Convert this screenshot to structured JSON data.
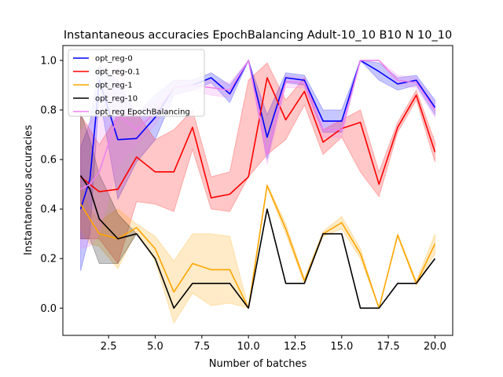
{
  "chart_data": {
    "type": "line",
    "title": "Instantaneous accuracies EpochBalancing Adult-10_10 B10 N 10_10",
    "xlabel": "Number of batches",
    "ylabel": "Instantaneous accuracies",
    "xlim": [
      0.05,
      20.95
    ],
    "ylim": [
      -0.11,
      1.06
    ],
    "xticks": [
      2.5,
      5.0,
      7.5,
      10.0,
      12.5,
      15.0,
      17.5,
      20.0
    ],
    "xtick_labels": [
      "2.5",
      "5.0",
      "7.5",
      "10.0",
      "12.5",
      "15.0",
      "17.5",
      "20.0"
    ],
    "yticks": [
      0.0,
      0.2,
      0.4,
      0.6,
      0.8,
      1.0
    ],
    "ytick_labels": [
      "0.0",
      "0.2",
      "0.4",
      "0.6",
      "0.8",
      "1.0"
    ],
    "legend_position": "top-left",
    "x": [
      1,
      1.5,
      2,
      3,
      4,
      5,
      6,
      7,
      8,
      9,
      10,
      11,
      12,
      13,
      14,
      15,
      16,
      17,
      18,
      19,
      20
    ],
    "series": [
      {
        "name": "opt_reg-0",
        "color": "#0000ff",
        "values": [
          0.4,
          0.52,
          0.92,
          0.68,
          0.685,
          0.77,
          0.89,
          0.9,
          0.93,
          0.865,
          1.0,
          0.69,
          0.93,
          0.92,
          0.755,
          0.755,
          1.0,
          0.955,
          0.905,
          0.92,
          0.81
        ],
        "upper": [
          0.65,
          0.75,
          0.98,
          0.92,
          0.78,
          0.86,
          0.92,
          0.92,
          0.95,
          0.9,
          1.0,
          0.78,
          0.95,
          0.94,
          0.8,
          0.8,
          1.0,
          0.99,
          0.93,
          0.94,
          0.84
        ],
        "lower": [
          0.15,
          0.3,
          0.86,
          0.44,
          0.59,
          0.68,
          0.86,
          0.88,
          0.91,
          0.83,
          1.0,
          0.6,
          0.91,
          0.9,
          0.71,
          0.71,
          1.0,
          0.92,
          0.88,
          0.9,
          0.78
        ]
      },
      {
        "name": "opt_reg-0.1",
        "color": "#ff0000",
        "values": [
          0.53,
          0.5,
          0.47,
          0.48,
          0.61,
          0.55,
          0.55,
          0.73,
          0.445,
          0.46,
          0.53,
          0.93,
          0.76,
          0.875,
          0.67,
          0.725,
          0.75,
          0.5,
          0.73,
          0.86,
          0.63
        ],
        "upper": [
          0.78,
          0.72,
          0.66,
          0.78,
          0.79,
          0.68,
          0.72,
          0.8,
          0.53,
          0.55,
          0.92,
          0.99,
          0.84,
          0.93,
          0.72,
          0.76,
          0.8,
          0.55,
          0.75,
          0.88,
          0.67
        ],
        "lower": [
          0.28,
          0.28,
          0.28,
          0.18,
          0.43,
          0.42,
          0.39,
          0.64,
          0.4,
          0.39,
          0.53,
          0.62,
          0.68,
          0.82,
          0.62,
          0.69,
          0.55,
          0.45,
          0.71,
          0.84,
          0.59
        ]
      },
      {
        "name": "opt_reg-1",
        "color": "#ffa500",
        "values": [
          0.42,
          0.36,
          0.3,
          0.28,
          0.325,
          0.24,
          0.065,
          0.18,
          0.155,
          0.155,
          0.0,
          0.495,
          0.32,
          0.11,
          0.3,
          0.345,
          0.22,
          0.0,
          0.295,
          0.1,
          0.26
        ],
        "upper": [
          0.5,
          0.4,
          0.35,
          0.4,
          0.34,
          0.29,
          0.19,
          0.3,
          0.3,
          0.29,
          0.0,
          0.5,
          0.34,
          0.12,
          0.31,
          0.37,
          0.24,
          0.0,
          0.3,
          0.11,
          0.3
        ],
        "lower": [
          0.32,
          0.26,
          0.25,
          0.16,
          0.31,
          0.19,
          -0.06,
          0.06,
          0.01,
          0.02,
          0.0,
          0.49,
          0.3,
          0.1,
          0.29,
          0.32,
          0.2,
          0.0,
          0.29,
          0.09,
          0.22
        ]
      },
      {
        "name": "opt_reg-10",
        "color": "#000000",
        "values": [
          0.535,
          0.48,
          0.36,
          0.28,
          0.3,
          0.2,
          0.0,
          0.1,
          0.1,
          0.1,
          0.0,
          0.4,
          0.1,
          0.1,
          0.3,
          0.3,
          0.0,
          0.0,
          0.1,
          0.1,
          0.2
        ],
        "upper": [
          0.79,
          0.68,
          0.54,
          0.38,
          0.3,
          0.2,
          0.0,
          0.1,
          0.1,
          0.1,
          0.0,
          0.4,
          0.1,
          0.1,
          0.3,
          0.3,
          0.0,
          0.0,
          0.1,
          0.1,
          0.2
        ],
        "lower": [
          0.28,
          0.28,
          0.18,
          0.18,
          0.3,
          0.2,
          0.0,
          0.1,
          0.1,
          0.1,
          0.0,
          0.4,
          0.1,
          0.1,
          0.3,
          0.3,
          0.0,
          0.0,
          0.1,
          0.1,
          0.2
        ]
      },
      {
        "name": "opt_reg EpochBalancing",
        "color": "#ee82ee",
        "values": [
          0.48,
          0.5,
          0.55,
          0.78,
          0.72,
          0.79,
          0.89,
          0.9,
          0.89,
          0.88,
          1.0,
          0.62,
          0.915,
          0.91,
          0.72,
          0.72,
          1.0,
          1.0,
          0.92,
          0.91,
          0.8
        ],
        "upper": [
          0.72,
          0.75,
          0.8,
          0.98,
          0.78,
          0.84,
          0.92,
          0.92,
          0.92,
          0.91,
          1.0,
          0.66,
          0.94,
          0.93,
          0.75,
          0.75,
          1.0,
          1.0,
          0.94,
          0.93,
          0.83
        ],
        "lower": [
          0.24,
          0.25,
          0.3,
          0.58,
          0.66,
          0.74,
          0.86,
          0.88,
          0.86,
          0.85,
          1.0,
          0.58,
          0.89,
          0.89,
          0.69,
          0.69,
          1.0,
          1.0,
          0.9,
          0.89,
          0.77
        ]
      }
    ]
  }
}
